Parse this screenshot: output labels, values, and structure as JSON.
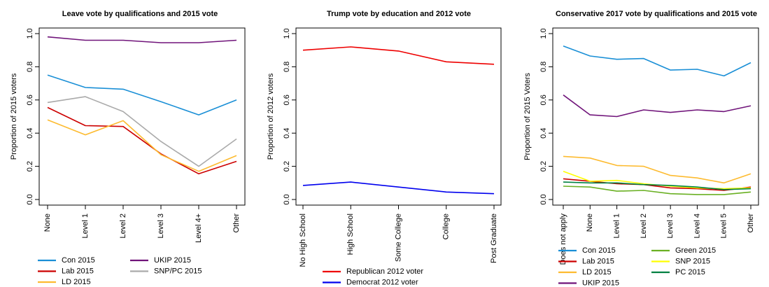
{
  "chart_data": [
    {
      "type": "line",
      "title": "Leave vote by qualifications and 2015 vote",
      "ylabel": "Proportion of 2015 voters",
      "xlabel": "",
      "ylim": [
        0,
        1
      ],
      "yticks": [
        "0.0",
        "0.2",
        "0.4",
        "0.6",
        "0.8",
        "1.0"
      ],
      "categories": [
        "None",
        "Level 1",
        "Level 2",
        "Level 3",
        "Level 4+",
        "Other"
      ],
      "legend_position": "bottom",
      "series": [
        {
          "name": "Con 2015",
          "color": "#1a8fd6",
          "values": [
            0.75,
            0.675,
            0.665,
            0.59,
            0.51,
            0.6
          ]
        },
        {
          "name": "Lab 2015",
          "color": "#cc0000",
          "values": [
            0.555,
            0.445,
            0.44,
            0.275,
            0.155,
            0.23
          ]
        },
        {
          "name": "LD 2015",
          "color": "#fdbb30",
          "values": [
            0.48,
            0.39,
            0.475,
            0.27,
            0.17,
            0.265
          ]
        },
        {
          "name": "UKIP 2015",
          "color": "#70147a",
          "values": [
            0.98,
            0.96,
            0.96,
            0.945,
            0.945,
            0.96
          ]
        },
        {
          "name": "SNP/PC 2015",
          "color": "#aaaaaa",
          "values": [
            0.585,
            0.62,
            0.53,
            0.35,
            0.2,
            0.365
          ]
        }
      ]
    },
    {
      "type": "line",
      "title": "Trump vote by education and 2012 vote",
      "ylabel": "Proportion of 2012 voters",
      "xlabel": "",
      "ylim": [
        0,
        1
      ],
      "yticks": [
        "0.0",
        "0.2",
        "0.4",
        "0.6",
        "0.8",
        "1.0"
      ],
      "categories": [
        "No High School",
        "High School",
        "Some College",
        "College",
        "Post Graduate"
      ],
      "legend_position": "bottom",
      "series": [
        {
          "name": "Republican 2012 voter",
          "color": "#ee0000",
          "values": [
            0.9,
            0.92,
            0.895,
            0.83,
            0.815
          ]
        },
        {
          "name": "Democrat 2012 voter",
          "color": "#0000ee",
          "values": [
            0.085,
            0.105,
            0.075,
            0.045,
            0.035
          ]
        }
      ]
    },
    {
      "type": "line",
      "title": "Conservative 2017 vote by qualifications and 2015 vote",
      "ylabel": "Proportion of 2015 Voters",
      "xlabel": "",
      "ylim": [
        0,
        1
      ],
      "yticks": [
        "0.0",
        "0.2",
        "0.4",
        "0.6",
        "0.8",
        "1.0"
      ],
      "categories": [
        "Does not apply",
        "None",
        "Level 1",
        "Level 2",
        "Level 3",
        "Level 4",
        "Level 5",
        "Other"
      ],
      "legend_position": "bottom",
      "series": [
        {
          "name": "Con 2015",
          "color": "#1a8fd6",
          "values": [
            0.925,
            0.865,
            0.845,
            0.85,
            0.78,
            0.785,
            0.745,
            0.825
          ]
        },
        {
          "name": "Lab 2015",
          "color": "#cc0000",
          "values": [
            0.125,
            0.11,
            0.095,
            0.09,
            0.07,
            0.065,
            0.055,
            0.075
          ]
        },
        {
          "name": "LD 2015",
          "color": "#fdbb30",
          "values": [
            0.26,
            0.25,
            0.205,
            0.2,
            0.145,
            0.13,
            0.1,
            0.155
          ]
        },
        {
          "name": "UKIP 2015",
          "color": "#70147a",
          "values": [
            0.63,
            0.51,
            0.5,
            0.54,
            0.525,
            0.54,
            0.53,
            0.565
          ]
        },
        {
          "name": "Green 2015",
          "color": "#6ab023",
          "values": [
            0.08,
            0.075,
            0.05,
            0.055,
            0.035,
            0.03,
            0.03,
            0.045
          ]
        },
        {
          "name": "SNP 2015",
          "color": "#ffff00",
          "values": [
            0.17,
            0.11,
            0.115,
            0.095,
            0.08,
            0.07,
            0.065,
            0.07
          ]
        },
        {
          "name": "PC 2015",
          "color": "#008142",
          "values": [
            0.105,
            0.1,
            0.1,
            0.09,
            0.085,
            0.075,
            0.06,
            0.065
          ]
        }
      ]
    }
  ]
}
